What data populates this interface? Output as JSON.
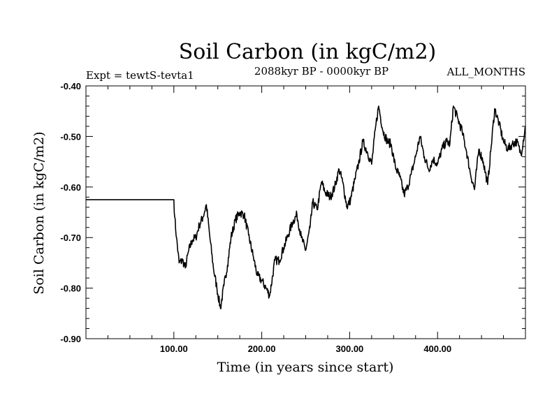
{
  "chart_data": {
    "type": "line",
    "title": "Soil Carbon (in kgC/m2)",
    "subtitle_left": "Expt = tewtS-tevta1",
    "subtitle_center": "2088kyr BP - 0000kyr BP",
    "subtitle_right": "ALL_MONTHS",
    "xlabel": "Time (in years since start)",
    "ylabel": "Soil Carbon (in kgC/m2)",
    "xlim": [
      0,
      500
    ],
    "ylim": [
      -0.9,
      -0.4
    ],
    "x_ticks": [
      100,
      200,
      300,
      400
    ],
    "x_tick_labels": [
      "100.00",
      "200.00",
      "300.00",
      "400.00"
    ],
    "y_ticks": [
      -0.9,
      -0.8,
      -0.7,
      -0.6,
      -0.5,
      -0.4
    ],
    "y_tick_labels": [
      "-0.90",
      "-0.80",
      "-0.70",
      "-0.60",
      "-0.50",
      "-0.40"
    ],
    "grid": false,
    "line_color": "#000000",
    "series": [
      {
        "name": "Soil Carbon",
        "x": [
          0,
          100,
          101,
          103,
          106,
          110,
          113,
          117,
          121,
          125,
          129,
          133,
          137,
          141,
          145,
          149,
          153,
          157,
          161,
          165,
          170,
          175,
          180,
          185,
          190,
          195,
          200,
          205,
          209,
          215,
          220,
          225,
          230,
          235,
          240,
          245,
          250,
          255,
          258,
          263,
          268,
          272,
          278,
          283,
          288,
          292,
          297,
          301,
          306,
          310,
          315,
          320,
          325,
          330,
          333,
          338,
          343,
          347,
          352,
          357,
          362,
          366,
          370,
          375,
          380,
          385,
          390,
          395,
          400,
          405,
          410,
          414,
          418,
          423,
          428,
          433,
          437,
          442,
          447,
          452,
          457,
          461,
          465,
          470,
          475,
          480,
          485,
          490,
          495,
          500
        ],
        "y": [
          -0.625,
          -0.625,
          -0.66,
          -0.7,
          -0.75,
          -0.745,
          -0.76,
          -0.725,
          -0.705,
          -0.7,
          -0.675,
          -0.66,
          -0.635,
          -0.7,
          -0.76,
          -0.8,
          -0.84,
          -0.795,
          -0.755,
          -0.7,
          -0.665,
          -0.65,
          -0.655,
          -0.695,
          -0.735,
          -0.775,
          -0.785,
          -0.8,
          -0.815,
          -0.745,
          -0.745,
          -0.72,
          -0.695,
          -0.67,
          -0.655,
          -0.7,
          -0.725,
          -0.68,
          -0.63,
          -0.645,
          -0.59,
          -0.61,
          -0.62,
          -0.6,
          -0.565,
          -0.59,
          -0.64,
          -0.625,
          -0.585,
          -0.555,
          -0.51,
          -0.53,
          -0.555,
          -0.475,
          -0.44,
          -0.49,
          -0.51,
          -0.515,
          -0.56,
          -0.58,
          -0.615,
          -0.6,
          -0.575,
          -0.54,
          -0.5,
          -0.54,
          -0.565,
          -0.545,
          -0.555,
          -0.525,
          -0.51,
          -0.515,
          -0.44,
          -0.465,
          -0.49,
          -0.53,
          -0.57,
          -0.605,
          -0.525,
          -0.55,
          -0.595,
          -0.52,
          -0.445,
          -0.475,
          -0.51,
          -0.525,
          -0.515,
          -0.51,
          -0.535,
          -0.48
        ]
      }
    ]
  }
}
